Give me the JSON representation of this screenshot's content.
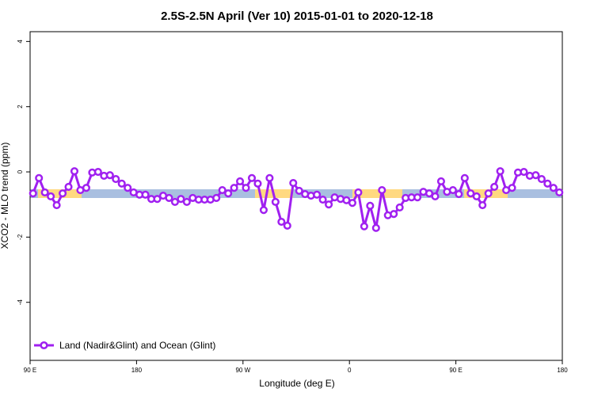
{
  "chart_data": {
    "type": "line",
    "title": "2.5S-2.5N April (Ver 10)   2015-01-01 to 2020-12-18",
    "xlabel": "Longitude (deg E)",
    "ylabel": "XCO2 - MLO trend (ppm)",
    "x": [
      92.5,
      97.5,
      102.5,
      107.5,
      112.5,
      117.5,
      122.5,
      127.5,
      132.5,
      137.5,
      142.5,
      147.5,
      152.5,
      157.5,
      162.5,
      167.5,
      172.5,
      177.5,
      182.5,
      187.5,
      192.5,
      197.5,
      202.5,
      207.5,
      212.5,
      217.5,
      222.5,
      227.5,
      232.5,
      237.5,
      242.5,
      247.5,
      252.5,
      257.5,
      262.5,
      267.5,
      272.5,
      277.5,
      282.5,
      287.5,
      292.5,
      297.5,
      302.5,
      307.5,
      312.5,
      317.5,
      322.5,
      327.5,
      332.5,
      337.5,
      342.5,
      347.5,
      352.5,
      357.5,
      362.5,
      367.5,
      372.5,
      377.5,
      382.5,
      387.5,
      392.5,
      397.5,
      402.5,
      407.5,
      412.5,
      417.5,
      422.5,
      427.5,
      432.5,
      437.5,
      442.5,
      447.5,
      452.5,
      457.5,
      462.5,
      467.5,
      472.5,
      477.5,
      482.5,
      487.5,
      492.5,
      497.5,
      502.5,
      507.5,
      512.5,
      517.5,
      522.5,
      527.5,
      532.5,
      537.5
    ],
    "series": [
      {
        "name": "Land (Nadir&Glint) and Ocean (Glint)",
        "color": "#a020f0",
        "values": [
          -0.66,
          -0.19,
          -0.63,
          -0.75,
          -1.02,
          -0.66,
          -0.46,
          0.02,
          -0.56,
          -0.49,
          -0.02,
          0,
          -0.12,
          -0.1,
          -0.22,
          -0.36,
          -0.49,
          -0.63,
          -0.7,
          -0.7,
          -0.83,
          -0.83,
          -0.73,
          -0.8,
          -0.92,
          -0.83,
          -0.92,
          -0.8,
          -0.85,
          -0.85,
          -0.85,
          -0.8,
          -0.56,
          -0.66,
          -0.49,
          -0.29,
          -0.49,
          -0.19,
          -0.36,
          -1.17,
          -0.19,
          -0.92,
          -1.53,
          -1.65,
          -0.34,
          -0.58,
          -0.68,
          -0.73,
          -0.7,
          -0.85,
          -1.0,
          -0.78,
          -0.83,
          -0.87,
          -0.95,
          -0.63,
          -1.67,
          -1.04,
          -1.72,
          -0.56,
          -1.33,
          -1.29,
          -1.09,
          -0.8,
          -0.78,
          -0.78,
          -0.61,
          -0.66,
          -0.75,
          -0.29,
          -0.61,
          -0.56,
          -0.68,
          -0.19,
          -0.66,
          -0.75,
          -1.02,
          -0.66,
          -0.46,
          0.02,
          -0.56,
          -0.49,
          -0.02,
          0,
          -0.12,
          -0.1,
          -0.22,
          -0.36,
          -0.49,
          -0.63
        ]
      }
    ],
    "xlim": [
      90,
      540
    ],
    "xticks": [
      {
        "value": 90,
        "label": "90 E"
      },
      180,
      {
        "value": 270,
        "label": "90 W"
      },
      {
        "value": 360,
        "label": "0"
      },
      {
        "value": 450,
        "label": "90 E"
      },
      {
        "value": 540,
        "label": "180"
      }
    ],
    "ylim": [
      -5.78,
      4.3
    ],
    "yticks": [
      4,
      2,
      0,
      -2,
      -4
    ],
    "legend": "bottom-left"
  }
}
